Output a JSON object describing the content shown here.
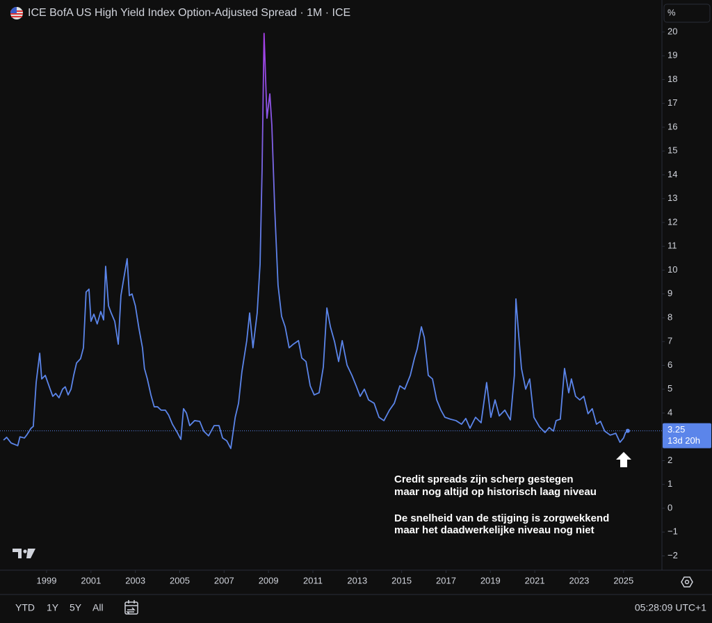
{
  "chart_data": {
    "type": "line",
    "title": "ICE BofA US High Yield Index Option-Adjusted Spread · 1M · ICE",
    "unit": "%",
    "color": "#5b85ea",
    "peak_color": "#a63ee6",
    "x": [
      1997.06,
      1997.2,
      1997.4,
      1997.7,
      1997.8,
      1998.0,
      1998.1,
      1998.3,
      1998.4,
      1998.53,
      1998.69,
      1998.78,
      1998.94,
      1999.16,
      1999.28,
      1999.41,
      1999.56,
      1999.72,
      1999.84,
      1999.97,
      2000.1,
      2000.22,
      2000.35,
      2000.53,
      2000.66,
      2000.78,
      2000.91,
      2001.0,
      2001.13,
      2001.28,
      2001.44,
      2001.57,
      2001.66,
      2001.79,
      2001.91,
      2002.07,
      2002.23,
      2002.35,
      2002.48,
      2002.63,
      2002.73,
      2002.85,
      2003.0,
      2003.16,
      2003.32,
      2003.41,
      2003.54,
      2003.7,
      2003.85,
      2004.0,
      2004.16,
      2004.35,
      2004.5,
      2004.67,
      2004.89,
      2005.05,
      2005.17,
      2005.3,
      2005.45,
      2005.67,
      2005.9,
      2006.08,
      2006.3,
      2006.55,
      2006.77,
      2006.93,
      2007.12,
      2007.3,
      2007.5,
      2007.65,
      2007.8,
      2008.02,
      2008.15,
      2008.3,
      2008.49,
      2008.62,
      2008.71,
      2008.8,
      2008.93,
      2009.06,
      2009.15,
      2009.28,
      2009.43,
      2009.59,
      2009.75,
      2009.93,
      2010.12,
      2010.35,
      2010.5,
      2010.69,
      2010.88,
      2011.06,
      2011.28,
      2011.47,
      2011.63,
      2011.79,
      2011.98,
      2012.16,
      2012.32,
      2012.54,
      2012.76,
      2012.95,
      2013.13,
      2013.32,
      2013.51,
      2013.76,
      2013.98,
      2014.2,
      2014.45,
      2014.67,
      2014.92,
      2015.14,
      2015.39,
      2015.58,
      2015.7,
      2015.89,
      2016.02,
      2016.2,
      2016.39,
      2016.58,
      2016.77,
      2016.95,
      2017.2,
      2017.45,
      2017.7,
      2017.89,
      2018.08,
      2018.33,
      2018.58,
      2018.83,
      2019.02,
      2019.21,
      2019.4,
      2019.65,
      2019.9,
      2020.08,
      2020.15,
      2020.27,
      2020.4,
      2020.59,
      2020.77,
      2020.96,
      2021.21,
      2021.46,
      2021.65,
      2021.84,
      2021.96,
      2022.15,
      2022.34,
      2022.53,
      2022.65,
      2022.84,
      2023.03,
      2023.21,
      2023.4,
      2023.59,
      2023.78,
      2023.96,
      2024.15,
      2024.4,
      2024.65,
      2024.84,
      2025.0,
      2025.09,
      2025.19
    ],
    "values": [
      2.86,
      2.98,
      2.74,
      2.63,
      3.0,
      2.95,
      3.07,
      3.36,
      3.44,
      5.28,
      6.51,
      5.43,
      5.58,
      5.0,
      4.7,
      4.82,
      4.64,
      5.0,
      5.1,
      4.76,
      5.0,
      5.58,
      6.1,
      6.28,
      6.74,
      9.08,
      9.2,
      7.85,
      8.15,
      7.74,
      8.26,
      7.91,
      10.16,
      8.5,
      8.2,
      7.85,
      6.89,
      8.93,
      9.66,
      10.48,
      8.93,
      9.0,
      8.5,
      7.56,
      6.74,
      5.87,
      5.43,
      4.76,
      4.26,
      4.26,
      4.12,
      4.12,
      3.91,
      3.53,
      3.18,
      2.89,
      4.18,
      4.0,
      3.47,
      3.68,
      3.65,
      3.24,
      3.04,
      3.47,
      3.47,
      2.95,
      2.83,
      2.51,
      3.82,
      4.41,
      5.72,
      7.04,
      8.2,
      6.74,
      8.2,
      10.25,
      14.19,
      19.94,
      16.38,
      17.4,
      16.09,
      12.58,
      9.37,
      8.06,
      7.62,
      6.74,
      6.89,
      7.04,
      6.31,
      6.16,
      5.14,
      4.76,
      4.85,
      5.93,
      8.41,
      7.62,
      6.98,
      6.16,
      7.04,
      6.01,
      5.58,
      5.14,
      4.7,
      5.0,
      4.55,
      4.41,
      3.82,
      3.68,
      4.12,
      4.41,
      5.14,
      5.0,
      5.58,
      6.31,
      6.69,
      7.62,
      7.18,
      5.58,
      5.43,
      4.55,
      4.12,
      3.82,
      3.74,
      3.68,
      3.53,
      3.77,
      3.36,
      3.82,
      3.59,
      5.28,
      3.82,
      4.55,
      3.88,
      4.12,
      3.71,
      5.58,
      8.79,
      7.33,
      5.87,
      5.0,
      5.43,
      3.82,
      3.42,
      3.18,
      3.39,
      3.24,
      3.68,
      3.74,
      5.87,
      4.85,
      5.43,
      4.7,
      4.55,
      4.7,
      3.97,
      4.18,
      3.53,
      3.65,
      3.24,
      3.07,
      3.15,
      2.77,
      2.95,
      3.18,
      3.25
    ],
    "last_value": {
      "value": 3.25,
      "label": "3.25",
      "countdown": "13d 20h"
    },
    "xlim": [
      1996.9,
      2026.73
    ],
    "ylim": [
      -2.5,
      20.3
    ],
    "xticks": [
      1999,
      2001,
      2003,
      2005,
      2007,
      2009,
      2011,
      2013,
      2015,
      2017,
      2019,
      2021,
      2023,
      2025
    ],
    "yticks": [
      {
        "value": -2,
        "label": "−2"
      },
      {
        "value": -1,
        "label": "−1"
      },
      0,
      1,
      2,
      3,
      4,
      5,
      6,
      7,
      8,
      9,
      10,
      11,
      12,
      13,
      14,
      15,
      16,
      17,
      18,
      19,
      20
    ],
    "annotations": [
      "Credit spreads zijn scherp gestegen",
      "maar nog altijd op historisch laag niveau",
      "De snelheid van de stijging is zorgwekkend",
      "maar het daadwerkelijke niveau nog niet"
    ],
    "ranges": [
      "YTD",
      "1Y",
      "5Y",
      "All"
    ],
    "clock": "05:28:09 UTC+1"
  }
}
